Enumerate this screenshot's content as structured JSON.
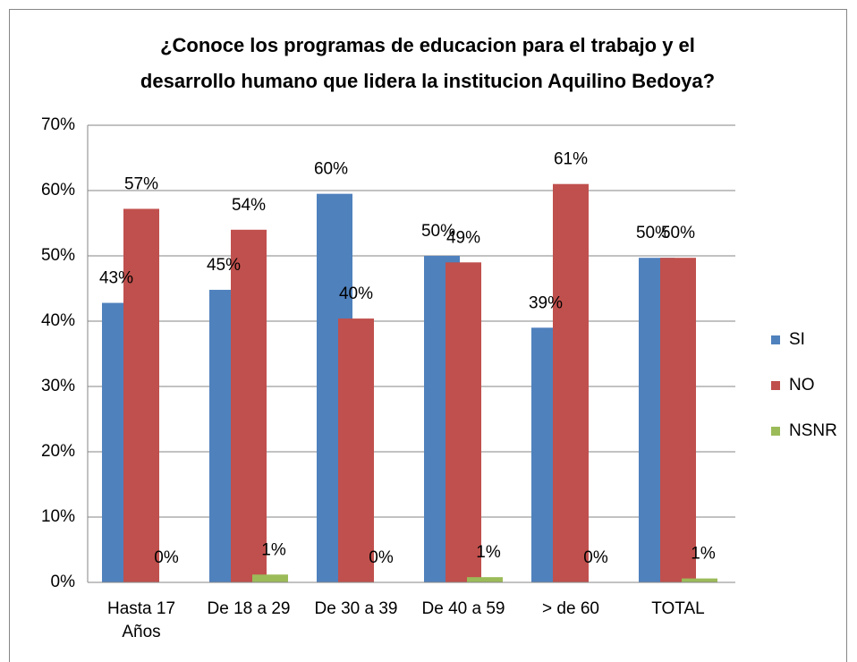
{
  "chart_data": {
    "type": "bar",
    "title": [
      "¿Conoce los programas de educacion para el trabajo y el",
      "desarrollo humano que lidera la institucion Aquilino Bedoya?"
    ],
    "categories": [
      "Hasta 17\nAños",
      "De 18 a 29",
      "De 30 a 39",
      "De 40 a 59",
      "> de 60",
      "TOTAL"
    ],
    "series": [
      {
        "name": "SI",
        "color": "#4f81bd",
        "values": [
          42.8,
          44.8,
          59.5,
          50,
          39,
          49.7
        ],
        "value_labels": [
          "43%",
          "45%",
          "60%",
          "50%",
          "39%",
          "50%"
        ]
      },
      {
        "name": "NO",
        "color": "#c0504d",
        "values": [
          57.2,
          54,
          40.4,
          49,
          61,
          49.7
        ],
        "value_labels": [
          "57%",
          "54%",
          "40%",
          "49%",
          "61%",
          "50%"
        ]
      },
      {
        "name": "NSNR",
        "color": "#9bbb59",
        "values": [
          0,
          1.2,
          0,
          0.8,
          0,
          0.6
        ],
        "value_labels": [
          "0%",
          "1%",
          "0%",
          "1%",
          "0%",
          "1%"
        ]
      }
    ],
    "ylim": [
      0,
      70
    ],
    "yticks": [
      {
        "value": 0,
        "label": "0%"
      },
      {
        "value": 10,
        "label": "10%"
      },
      {
        "value": 20,
        "label": "20%"
      },
      {
        "value": 30,
        "label": "30%"
      },
      {
        "value": 40,
        "label": "40%"
      },
      {
        "value": 50,
        "label": "50%"
      },
      {
        "value": 60,
        "label": "60%"
      },
      {
        "value": 70,
        "label": "70%"
      }
    ],
    "grid": true,
    "legend": "right"
  }
}
